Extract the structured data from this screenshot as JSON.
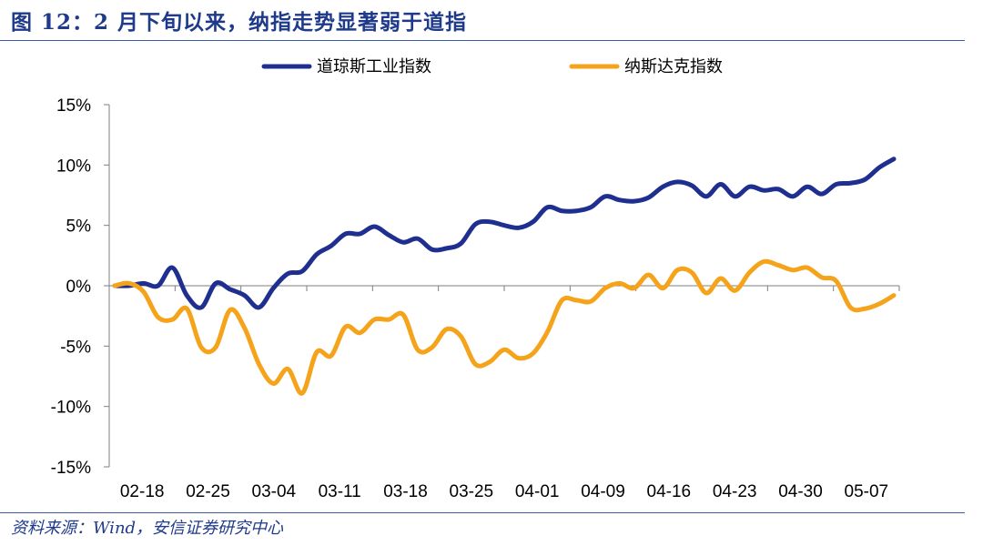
{
  "header": {
    "title": "图 12：2 月下旬以来，纳指走势显著弱于道指"
  },
  "footer": {
    "source": "资料来源：Wind，安信证券研究中心"
  },
  "chart_data": {
    "type": "line",
    "x_tick_labels": [
      "02-18",
      "02-25",
      "03-04",
      "03-11",
      "03-18",
      "03-25",
      "04-01",
      "04-09",
      "04-16",
      "04-23",
      "04-30",
      "05-07"
    ],
    "y_tick_labels": [
      "15%",
      "10%",
      "5%",
      "0%",
      "-5%",
      "-10%",
      "-15%"
    ],
    "ylim": [
      -15,
      15
    ],
    "y_unit": "%",
    "grid": false,
    "legend_position": "top",
    "series": [
      {
        "name": "道琼斯工业指数",
        "color": "#1f2f8f",
        "values": [
          0,
          0,
          0.2,
          0,
          1.5,
          -0.8,
          -1.8,
          0.2,
          -0.3,
          -0.8,
          -1.8,
          -0.2,
          1,
          1.2,
          2.6,
          3.3,
          4.3,
          4.3,
          4.9,
          4.2,
          3.6,
          3.9,
          3,
          3.1,
          3.5,
          5.1,
          5.3,
          5,
          4.8,
          5.3,
          6.5,
          6.2,
          6.2,
          6.5,
          7.4,
          7.1,
          7,
          7.3,
          8.2,
          8.6,
          8.3,
          7.4,
          8.4,
          7.4,
          8.2,
          7.9,
          8,
          7.4,
          8.2,
          7.6,
          8.4,
          8.5,
          8.8,
          9.8,
          10.5
        ]
      },
      {
        "name": "纳斯达克指数",
        "color": "#f5a31a",
        "values": [
          0,
          0.2,
          -0.5,
          -2.6,
          -2.8,
          -1.9,
          -5.1,
          -5.1,
          -2,
          -3.5,
          -6.5,
          -8.1,
          -6.9,
          -8.9,
          -5.5,
          -5.8,
          -3.4,
          -3.9,
          -2.8,
          -2.8,
          -2.4,
          -5.3,
          -5.1,
          -3.6,
          -4.2,
          -6.5,
          -6.3,
          -5.3,
          -6,
          -5.6,
          -3.8,
          -1.2,
          -1.2,
          -1.3,
          -0.2,
          0.2,
          -0.2,
          0.9,
          -0.2,
          1.3,
          1.1,
          -0.6,
          0.6,
          -0.4,
          1.1,
          2,
          1.7,
          1.3,
          1.5,
          0.7,
          0.4,
          -1.8,
          -1.9,
          -1.5,
          -0.8
        ]
      }
    ]
  }
}
